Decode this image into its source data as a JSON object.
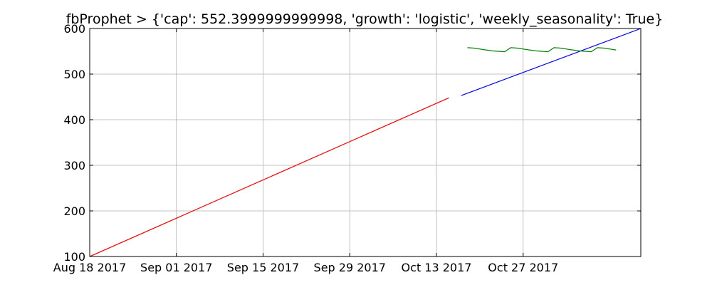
{
  "chart_data": {
    "type": "line",
    "title": "fbProphet > {'cap': 552.3999999999998, 'growth': 'logistic', 'weekly_seasonality': True}",
    "xlabel": "",
    "ylabel": "",
    "x_axis": {
      "kind": "date",
      "range": [
        "2017-08-18",
        "2017-11-15"
      ],
      "ticks": [
        {
          "date": "2017-08-18",
          "label": "Aug 18 2017"
        },
        {
          "date": "2017-09-01",
          "label": "Sep 01 2017"
        },
        {
          "date": "2017-09-15",
          "label": "Sep 15 2017"
        },
        {
          "date": "2017-09-29",
          "label": "Sep 29 2017"
        },
        {
          "date": "2017-10-13",
          "label": "Oct 13 2017"
        },
        {
          "date": "2017-10-27",
          "label": "Oct 27 2017"
        }
      ]
    },
    "y_axis": {
      "range": [
        100,
        600
      ],
      "ticks": [
        100,
        200,
        300,
        400,
        500,
        600
      ]
    },
    "grid": true,
    "series": [
      {
        "color": "#ff0000",
        "points": [
          [
            "2017-08-18",
            100
          ],
          [
            "2017-10-15",
            448
          ]
        ]
      },
      {
        "color": "#0000ff",
        "points": [
          [
            "2017-10-17",
            453
          ],
          [
            "2017-11-15",
            600
          ]
        ]
      },
      {
        "color": "#008000",
        "points": [
          [
            "2017-10-18",
            558
          ],
          [
            "2017-10-19",
            557
          ],
          [
            "2017-10-20",
            555
          ],
          [
            "2017-10-21",
            553
          ],
          [
            "2017-10-22",
            551
          ],
          [
            "2017-10-23",
            550
          ],
          [
            "2017-10-24",
            549
          ],
          [
            "2017-10-25",
            558
          ],
          [
            "2017-10-26",
            557
          ],
          [
            "2017-10-27",
            555
          ],
          [
            "2017-10-28",
            553
          ],
          [
            "2017-10-29",
            551
          ],
          [
            "2017-10-30",
            550
          ],
          [
            "2017-10-31",
            549
          ],
          [
            "2017-11-01",
            558
          ],
          [
            "2017-11-02",
            557
          ],
          [
            "2017-11-03",
            555
          ],
          [
            "2017-11-04",
            553
          ],
          [
            "2017-11-05",
            551
          ],
          [
            "2017-11-06",
            550
          ],
          [
            "2017-11-07",
            549
          ],
          [
            "2017-11-08",
            558
          ],
          [
            "2017-11-09",
            557
          ],
          [
            "2017-11-10",
            555
          ],
          [
            "2017-11-11",
            553
          ]
        ]
      }
    ]
  }
}
